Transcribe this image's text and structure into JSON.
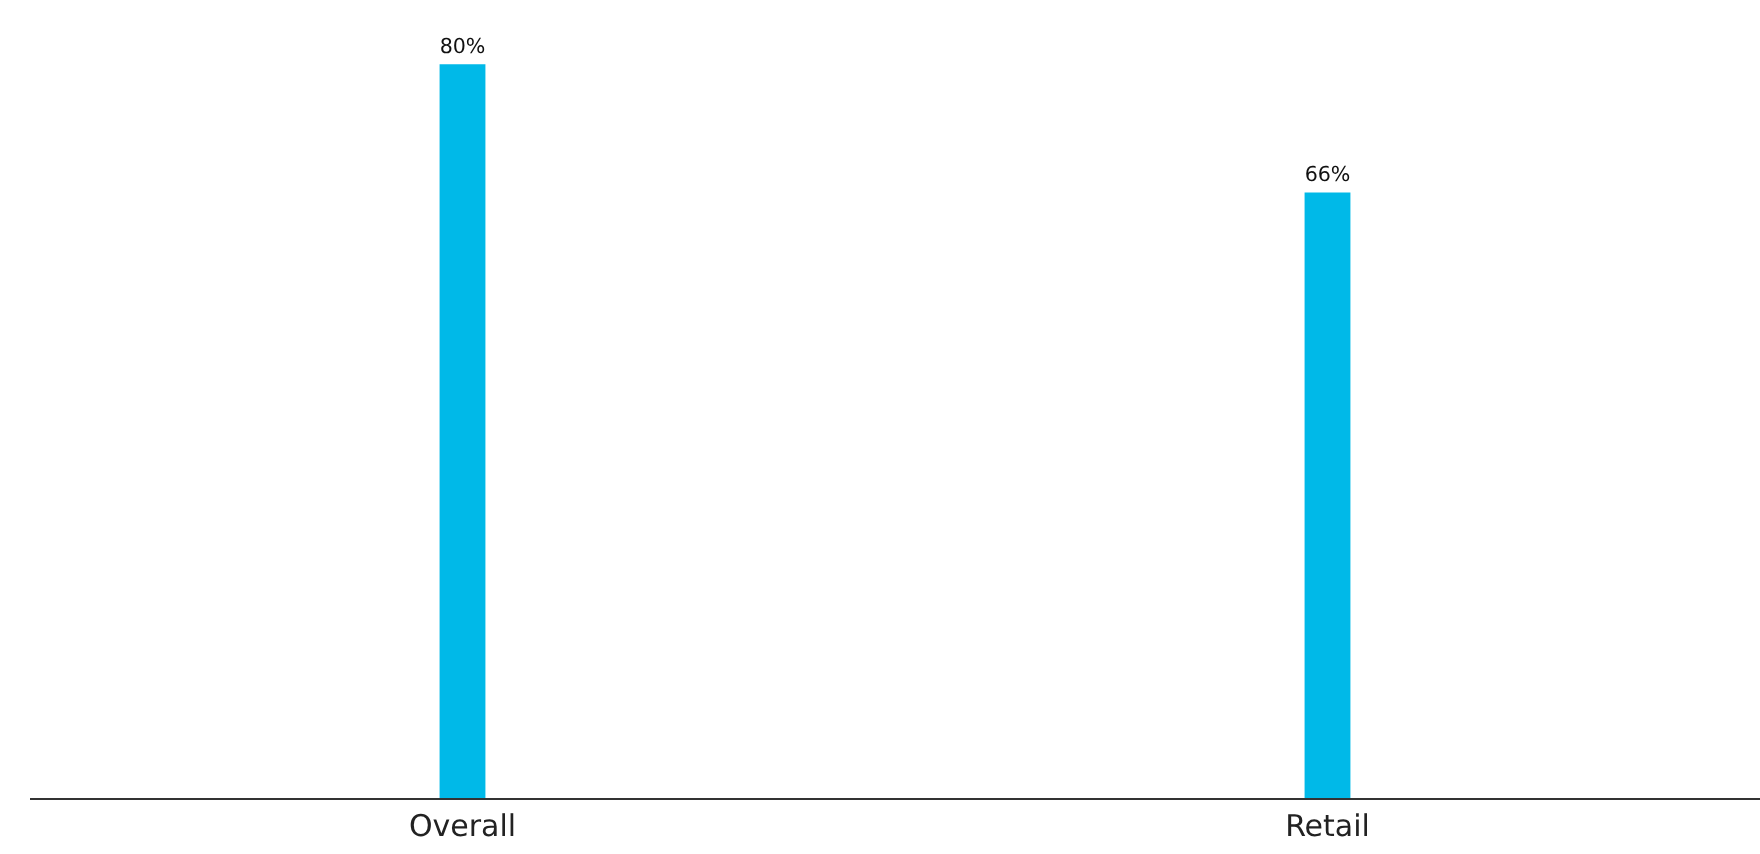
{
  "chart_data": {
    "type": "bar",
    "categories": [
      "Overall",
      "Retail"
    ],
    "values": [
      80,
      66
    ],
    "value_labels": [
      "80%",
      "66%"
    ],
    "color": "#00b9e8",
    "ylim": [
      0,
      87
    ],
    "tick_labels": "x"
  }
}
